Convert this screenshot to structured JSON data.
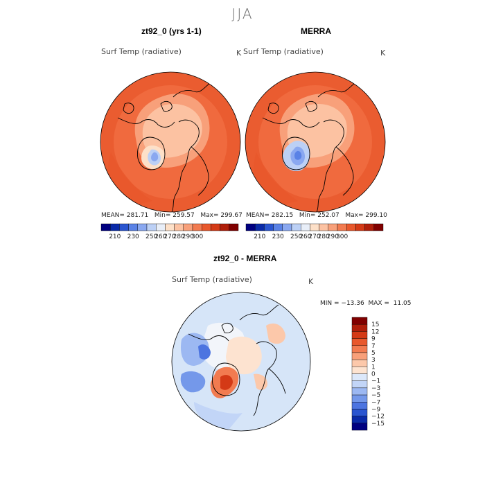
{
  "season": "JJA",
  "panels": {
    "left": {
      "title": "zt92_0 (yrs 1-1)",
      "variable": "Surf Temp (radiative)",
      "units": "K",
      "mean_label": "MEAN=",
      "mean": "281.71",
      "min_label": "Min=",
      "min": "259.57",
      "max_label": "Max=",
      "max": "299.67"
    },
    "right": {
      "title": "MERRA",
      "variable": "Surf Temp (radiative)",
      "units": "K",
      "mean_label": "MEAN=",
      "mean": "282.15",
      "min_label": "Min=",
      "min": "252.07",
      "max_label": "Max=",
      "max": "299.10"
    },
    "diff": {
      "title": "zt92_0 - MERRA",
      "variable": "Surf Temp (radiative)",
      "units": "K",
      "minmax": "MIN = −13.36  MAX =  11.05"
    }
  },
  "colors": {
    "abs_scale": [
      "#000080",
      "#0a2aa8",
      "#2a55d0",
      "#5a82e6",
      "#8aa8f0",
      "#bcd0f5",
      "#e8eef8",
      "#fde0c8",
      "#fcc2a2",
      "#f8a07a",
      "#f27b50",
      "#e8582c",
      "#d43a16",
      "#b01e0a",
      "#800000"
    ],
    "diff_scale": [
      "#000080",
      "#0a2aa8",
      "#2a55d0",
      "#4c74e0",
      "#7498ea",
      "#9cb8f2",
      "#c2d5f7",
      "#dce8fa",
      "#fde3d0",
      "#fcc8aa",
      "#f8a07a",
      "#f27b50",
      "#e8582c",
      "#d43a16",
      "#b01e0a",
      "#800000"
    ],
    "ocean_abs": "#f06a3e",
    "ocean_abs_outer": "#ea5c30",
    "diff_background": "#d6e5f8"
  },
  "chart_data": [
    {
      "type": "heatmap",
      "title": "zt92_0 (yrs 1-1)",
      "variable": "Surf Temp (radiative)",
      "units": "K",
      "projection": "north polar stereographic",
      "stats": {
        "mean": 281.71,
        "min": 259.57,
        "max": 299.67
      },
      "colorbar_ticks": [
        "210",
        "230",
        "250",
        "260",
        "270",
        "280",
        "290",
        "300"
      ]
    },
    {
      "type": "heatmap",
      "title": "MERRA",
      "variable": "Surf Temp (radiative)",
      "units": "K",
      "projection": "north polar stereographic",
      "stats": {
        "mean": 282.15,
        "min": 252.07,
        "max": 299.1
      },
      "colorbar_ticks": [
        "210",
        "230",
        "250",
        "260",
        "270",
        "280",
        "290",
        "300"
      ]
    },
    {
      "type": "heatmap",
      "title": "zt92_0 - MERRA",
      "variable": "Surf Temp (radiative)",
      "units": "K",
      "projection": "north polar stereographic",
      "stats": {
        "min": -13.36,
        "max": 11.05
      },
      "colorbar_ticks": [
        "15",
        "12",
        "9",
        "7",
        "5",
        "3",
        "1",
        "0",
        "−1",
        "−3",
        "−5",
        "−7",
        "−9",
        "−12",
        "−15"
      ]
    }
  ]
}
